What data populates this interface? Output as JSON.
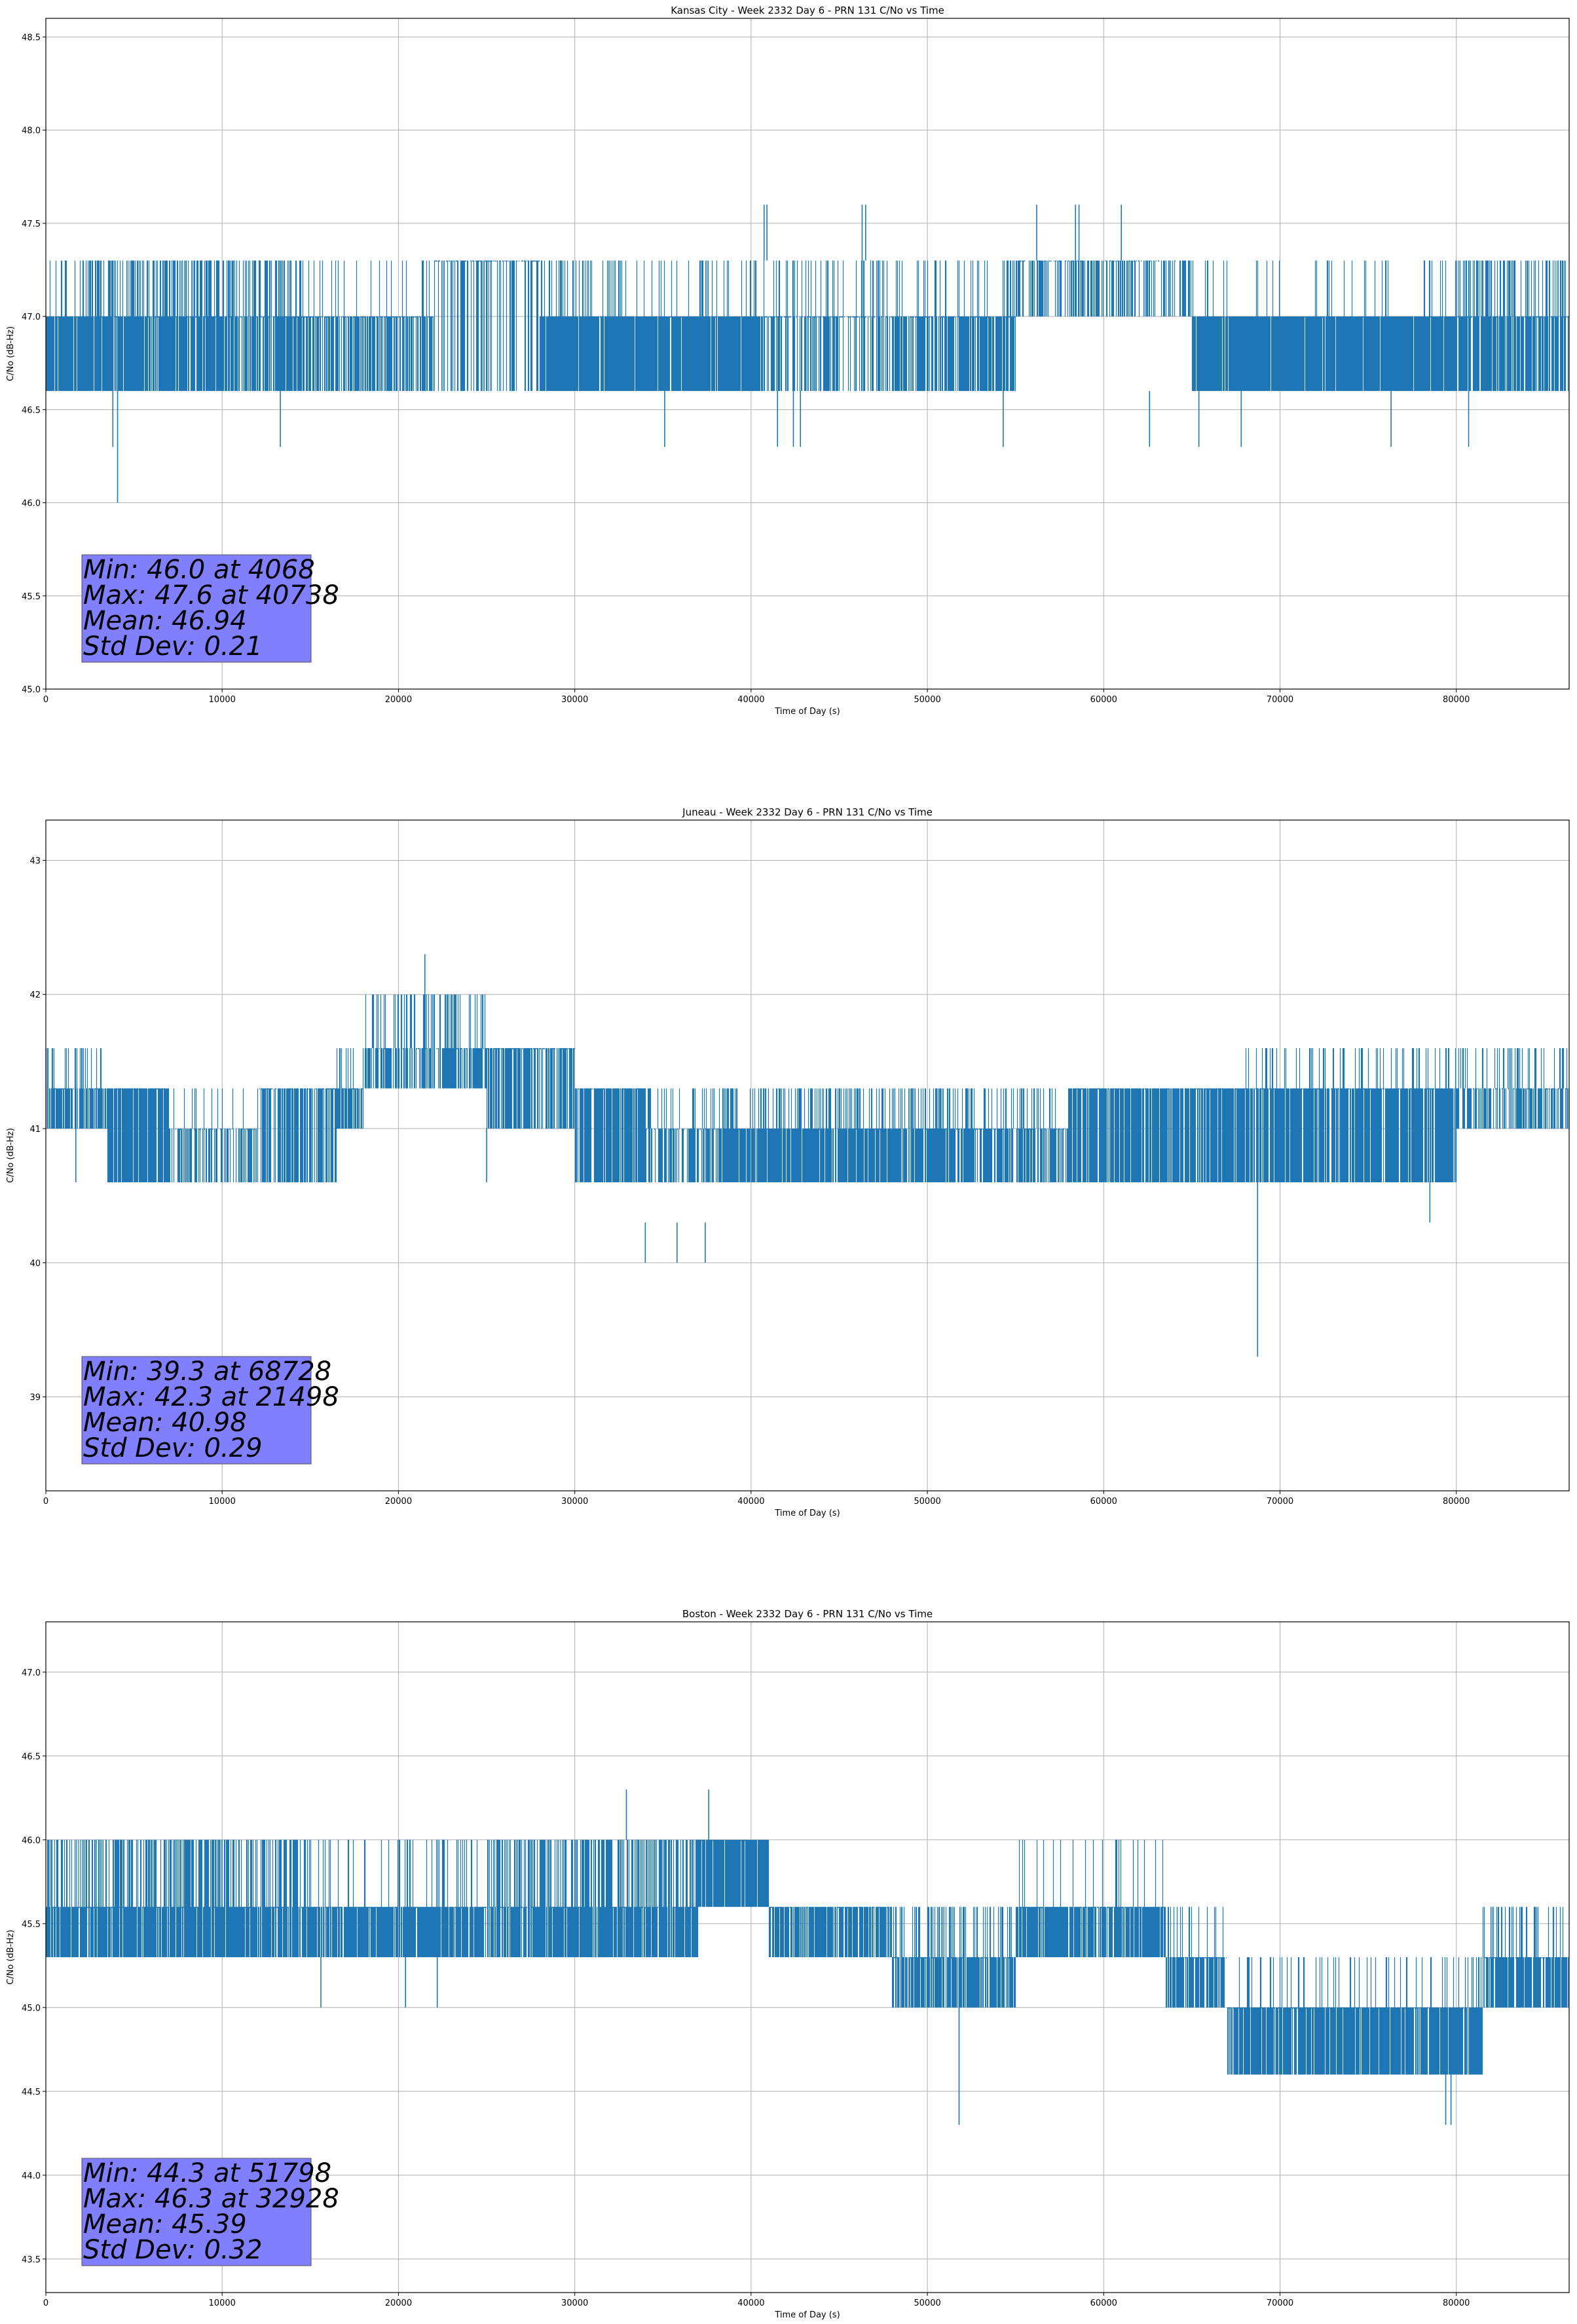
{
  "series_color": "#1f77b4",
  "stats_box_color": "#8080ff",
  "chart_data": [
    {
      "type": "line",
      "title": "Kansas City - Week 2332 Day 6 - PRN 131 C/No vs Time",
      "xlabel": "Time of Day (s)",
      "ylabel": "C/No (dB-Hz)",
      "xlim": [
        0,
        86400
      ],
      "ylim": [
        45.0,
        48.6
      ],
      "xticks": [
        0,
        10000,
        20000,
        30000,
        40000,
        50000,
        60000,
        70000,
        80000
      ],
      "xtick_labels": [
        "0",
        "10000",
        "20000",
        "30000",
        "40000",
        "50000",
        "60000",
        "70000",
        "80000"
      ],
      "yticks": [
        45.0,
        45.5,
        46.0,
        46.5,
        47.0,
        47.5,
        48.0,
        48.5
      ],
      "ytick_labels": [
        "45.0",
        "45.5",
        "46.0",
        "46.5",
        "47.0",
        "47.5",
        "48.0",
        "48.5"
      ],
      "grid": true,
      "band_segments": [
        {
          "x0": 0,
          "x1": 1500,
          "low": 46.6,
          "high": 47.0,
          "occ": 0.9,
          "up": 47.3,
          "upfreq": 0.2
        },
        {
          "x0": 1500,
          "x1": 10000,
          "low": 46.6,
          "high": 47.0,
          "occ": 0.85,
          "up": 47.3,
          "upfreq": 0.5
        },
        {
          "x0": 10000,
          "x1": 14500,
          "low": 46.6,
          "high": 47.0,
          "occ": 0.8,
          "up": 47.3,
          "upfreq": 0.55
        },
        {
          "x0": 14500,
          "x1": 22000,
          "low": 46.6,
          "high": 47.0,
          "occ": 0.65,
          "up": 47.3,
          "upfreq": 0.15
        },
        {
          "x0": 22000,
          "x1": 28000,
          "low": 46.6,
          "high": 47.3,
          "occ": 0.5,
          "up": 47.3,
          "upfreq": 0.0,
          "lowfreq": 0.15
        },
        {
          "x0": 28000,
          "x1": 40500,
          "low": 46.6,
          "high": 47.0,
          "occ": 0.95,
          "up": 47.3,
          "upfreq": 0.2
        },
        {
          "x0": 40500,
          "x1": 48000,
          "low": 46.6,
          "high": 47.0,
          "occ": 0.55,
          "up": 47.3,
          "upfreq": 0.45
        },
        {
          "x0": 48000,
          "x1": 55000,
          "low": 46.6,
          "high": 47.0,
          "occ": 0.7,
          "up": 47.3,
          "upfreq": 0.3
        },
        {
          "x0": 55000,
          "x1": 65000,
          "low": 47.0,
          "high": 47.3,
          "occ": 0.7,
          "up": 47.3,
          "upfreq": 0.0,
          "lowfreq": 0.35
        },
        {
          "x0": 65000,
          "x1": 80000,
          "low": 46.6,
          "high": 47.0,
          "occ": 0.97,
          "up": 47.3,
          "upfreq": 0.08
        },
        {
          "x0": 80000,
          "x1": 86400,
          "low": 46.6,
          "high": 47.0,
          "occ": 0.8,
          "up": 47.3,
          "upfreq": 0.5
        }
      ],
      "spikes": [
        {
          "x": 4068,
          "y0": 46.6,
          "y1": 46.0
        },
        {
          "x": 3800,
          "y0": 46.6,
          "y1": 46.3
        },
        {
          "x": 13300,
          "y0": 46.6,
          "y1": 46.3
        },
        {
          "x": 35100,
          "y0": 46.6,
          "y1": 46.3
        },
        {
          "x": 41500,
          "y0": 46.6,
          "y1": 46.3
        },
        {
          "x": 42400,
          "y0": 46.6,
          "y1": 46.3
        },
        {
          "x": 42800,
          "y0": 46.6,
          "y1": 46.3
        },
        {
          "x": 54300,
          "y0": 46.6,
          "y1": 46.3
        },
        {
          "x": 62600,
          "y0": 46.6,
          "y1": 46.3
        },
        {
          "x": 65400,
          "y0": 46.6,
          "y1": 46.3
        },
        {
          "x": 67800,
          "y0": 46.6,
          "y1": 46.3
        },
        {
          "x": 76300,
          "y0": 46.6,
          "y1": 46.3
        },
        {
          "x": 80700,
          "y0": 46.6,
          "y1": 46.3
        },
        {
          "x": 40738,
          "y0": 47.3,
          "y1": 47.6
        },
        {
          "x": 40900,
          "y0": 47.3,
          "y1": 47.6
        },
        {
          "x": 46300,
          "y0": 47.3,
          "y1": 47.6
        },
        {
          "x": 46500,
          "y0": 47.3,
          "y1": 47.6
        },
        {
          "x": 56200,
          "y0": 47.3,
          "y1": 47.6
        },
        {
          "x": 58400,
          "y0": 47.3,
          "y1": 47.6
        },
        {
          "x": 58600,
          "y0": 47.3,
          "y1": 47.6
        },
        {
          "x": 61000,
          "y0": 47.3,
          "y1": 47.6
        }
      ],
      "stats_text": [
        "Min: 46.0 at 4068",
        "Max: 47.6 at 40738",
        "Mean: 46.94",
        "Std Dev: 0.21"
      ]
    },
    {
      "type": "line",
      "title": "Juneau - Week 2332 Day 6 - PRN 131 C/No vs Time",
      "xlabel": "Time of Day (s)",
      "ylabel": "C/No (dB-Hz)",
      "xlim": [
        0,
        86400
      ],
      "ylim": [
        38.3,
        43.3
      ],
      "xticks": [
        0,
        10000,
        20000,
        30000,
        40000,
        50000,
        60000,
        70000,
        80000
      ],
      "xtick_labels": [
        "0",
        "10000",
        "20000",
        "30000",
        "40000",
        "50000",
        "60000",
        "70000",
        "80000"
      ],
      "yticks": [
        39,
        40,
        41,
        42,
        43
      ],
      "ytick_labels": [
        "39",
        "40",
        "41",
        "42",
        "43"
      ],
      "grid": true,
      "band_segments": [
        {
          "x0": 0,
          "x1": 3500,
          "low": 41.0,
          "high": 41.3,
          "occ": 0.8,
          "up": 41.6,
          "upfreq": 0.35,
          "lowfreq": 0.1
        },
        {
          "x0": 3500,
          "x1": 7000,
          "low": 40.6,
          "high": 41.3,
          "occ": 0.85,
          "up": 41.3,
          "upfreq": 0.0
        },
        {
          "x0": 7000,
          "x1": 12000,
          "low": 40.6,
          "high": 41.0,
          "occ": 0.8,
          "up": 41.3,
          "upfreq": 0.1,
          "lowfreq": 0.3
        },
        {
          "x0": 12000,
          "x1": 16500,
          "low": 40.6,
          "high": 41.3,
          "occ": 0.8,
          "up": 41.3,
          "upfreq": 0.0,
          "lowfreq": 0.2
        },
        {
          "x0": 16500,
          "x1": 18000,
          "low": 41.0,
          "high": 41.3,
          "occ": 0.8,
          "up": 41.6,
          "upfreq": 0.3
        },
        {
          "x0": 18000,
          "x1": 25000,
          "low": 41.3,
          "high": 41.6,
          "occ": 0.85,
          "up": 42.0,
          "upfreq": 0.35,
          "lowfreq": 0.2
        },
        {
          "x0": 25000,
          "x1": 30000,
          "low": 41.0,
          "high": 41.6,
          "occ": 0.7,
          "up": 41.6,
          "upfreq": 0.0
        },
        {
          "x0": 30000,
          "x1": 34000,
          "low": 40.6,
          "high": 41.3,
          "occ": 0.8,
          "up": 41.3,
          "upfreq": 0.0
        },
        {
          "x0": 34000,
          "x1": 38000,
          "low": 40.6,
          "high": 41.0,
          "occ": 0.85,
          "up": 41.3,
          "upfreq": 0.2,
          "lowfreq": 0.25
        },
        {
          "x0": 38000,
          "x1": 53000,
          "low": 40.6,
          "high": 41.0,
          "occ": 0.85,
          "up": 41.3,
          "upfreq": 0.4
        },
        {
          "x0": 53000,
          "x1": 58000,
          "low": 40.6,
          "high": 41.0,
          "occ": 0.85,
          "up": 41.3,
          "upfreq": 0.3,
          "lowfreq": 0.15
        },
        {
          "x0": 58000,
          "x1": 68000,
          "low": 40.6,
          "high": 41.3,
          "occ": 0.85,
          "up": 41.3,
          "upfreq": 0.0
        },
        {
          "x0": 68000,
          "x1": 80000,
          "low": 40.6,
          "high": 41.3,
          "occ": 0.85,
          "up": 41.6,
          "upfreq": 0.2
        },
        {
          "x0": 80000,
          "x1": 86400,
          "low": 41.0,
          "high": 41.3,
          "occ": 0.8,
          "up": 41.6,
          "upfreq": 0.25,
          "lowfreq": 0.3
        }
      ],
      "spikes": [
        {
          "x": 68728,
          "y0": 40.6,
          "y1": 39.3
        },
        {
          "x": 68700,
          "y0": 41.3,
          "y1": 40.6
        },
        {
          "x": 21498,
          "y0": 41.6,
          "y1": 42.3
        },
        {
          "x": 34000,
          "y0": 40.3,
          "y1": 40.0
        },
        {
          "x": 35800,
          "y0": 40.3,
          "y1": 40.0
        },
        {
          "x": 37400,
          "y0": 40.3,
          "y1": 40.0
        },
        {
          "x": 1700,
          "y0": 41.0,
          "y1": 40.6
        },
        {
          "x": 25000,
          "y0": 41.0,
          "y1": 40.6
        },
        {
          "x": 78500,
          "y0": 40.6,
          "y1": 40.3
        }
      ],
      "stats_text": [
        "Min: 39.3 at 68728",
        "Max: 42.3 at 21498",
        "Mean: 40.98",
        "Std Dev: 0.29"
      ]
    },
    {
      "type": "line",
      "title": "Boston - Week 2332 Day 6 - PRN 131 C/No vs Time",
      "xlabel": "Time of Day (s)",
      "ylabel": "C/No (dB-Hz)",
      "xlim": [
        0,
        86400
      ],
      "ylim": [
        43.3,
        47.3
      ],
      "xticks": [
        0,
        10000,
        20000,
        30000,
        40000,
        50000,
        60000,
        70000,
        80000
      ],
      "xtick_labels": [
        "0",
        "10000",
        "20000",
        "30000",
        "40000",
        "50000",
        "60000",
        "70000",
        "80000"
      ],
      "yticks": [
        43.5,
        44.0,
        44.5,
        45.0,
        45.5,
        46.0,
        46.5,
        47.0
      ],
      "ytick_labels": [
        "43.5",
        "44.0",
        "44.5",
        "45.0",
        "45.5",
        "46.0",
        "46.5",
        "47.0"
      ],
      "grid": true,
      "band_segments": [
        {
          "x0": 0,
          "x1": 15000,
          "low": 45.3,
          "high": 45.6,
          "occ": 0.85,
          "up": 46.0,
          "upfreq": 0.55
        },
        {
          "x0": 15000,
          "x1": 25000,
          "low": 45.3,
          "high": 45.6,
          "occ": 0.9,
          "up": 46.0,
          "upfreq": 0.2
        },
        {
          "x0": 25000,
          "x1": 37000,
          "low": 45.3,
          "high": 45.6,
          "occ": 0.85,
          "up": 46.0,
          "upfreq": 0.55
        },
        {
          "x0": 37000,
          "x1": 41000,
          "low": 45.6,
          "high": 46.0,
          "occ": 0.9,
          "up": 46.0,
          "upfreq": 0.0
        },
        {
          "x0": 41000,
          "x1": 48000,
          "low": 45.3,
          "high": 45.6,
          "occ": 0.85,
          "up": 45.6,
          "upfreq": 0.0,
          "lowfreq": 0.1
        },
        {
          "x0": 48000,
          "x1": 55000,
          "low": 45.0,
          "high": 45.3,
          "occ": 0.85,
          "up": 45.6,
          "upfreq": 0.4
        },
        {
          "x0": 55000,
          "x1": 63500,
          "low": 45.3,
          "high": 45.6,
          "occ": 0.85,
          "up": 46.0,
          "upfreq": 0.12
        },
        {
          "x0": 63500,
          "x1": 67000,
          "low": 45.0,
          "high": 45.3,
          "occ": 0.8,
          "up": 45.6,
          "upfreq": 0.2
        },
        {
          "x0": 67000,
          "x1": 81500,
          "low": 44.6,
          "high": 45.0,
          "occ": 0.9,
          "up": 45.3,
          "upfreq": 0.15
        },
        {
          "x0": 81500,
          "x1": 86400,
          "low": 45.0,
          "high": 45.3,
          "occ": 0.85,
          "up": 45.6,
          "upfreq": 0.3
        }
      ],
      "spikes": [
        {
          "x": 51798,
          "y0": 45.0,
          "y1": 44.3
        },
        {
          "x": 32928,
          "y0": 46.0,
          "y1": 46.3
        },
        {
          "x": 37600,
          "y0": 46.0,
          "y1": 46.3
        },
        {
          "x": 15600,
          "y0": 45.3,
          "y1": 45.0
        },
        {
          "x": 20400,
          "y0": 45.3,
          "y1": 45.0
        },
        {
          "x": 22200,
          "y0": 45.3,
          "y1": 45.0
        },
        {
          "x": 79400,
          "y0": 44.6,
          "y1": 44.3
        },
        {
          "x": 79700,
          "y0": 44.6,
          "y1": 44.3
        }
      ],
      "stats_text": [
        "Min: 44.3 at 51798",
        "Max: 46.3 at 32928",
        "Mean: 45.39",
        "Std Dev: 0.32"
      ]
    }
  ]
}
